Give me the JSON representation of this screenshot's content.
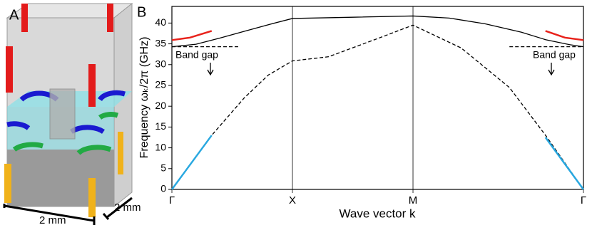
{
  "panel_a": {
    "label": "A",
    "width_label": "2 mm",
    "depth_label": "2 mm"
  },
  "chart_data": {
    "type": "line",
    "panel_label": "B",
    "x_label": "Wave vector k",
    "y_label": "Frequency ωₖ/2π (GHz)",
    "xlim": [
      0,
      3.414
    ],
    "ylim": [
      0,
      44
    ],
    "xticks": [
      {
        "value": 0,
        "label": "Γ"
      },
      {
        "value": 1,
        "label": "X"
      },
      {
        "value": 2,
        "label": "M"
      },
      {
        "value": 3.414,
        "label": "Γ"
      }
    ],
    "yticks": [
      0,
      5,
      10,
      15,
      20,
      25,
      30,
      35,
      40
    ],
    "annotations": [
      "Band gap",
      "Band gap"
    ],
    "series": [
      {
        "color": "#000000",
        "dash": false,
        "x": [
          0,
          0.2,
          0.4,
          0.6,
          0.8,
          1.0,
          1.5,
          2.0,
          2.3,
          2.6,
          2.9,
          3.1,
          3.3,
          3.414
        ],
        "values": [
          34.3,
          34.9,
          36.4,
          38.0,
          39.6,
          41.1,
          41.4,
          41.7,
          41.2,
          39.8,
          37.8,
          36.0,
          34.8,
          34.3
        ]
      },
      {
        "color": "#000000",
        "dash": true,
        "x": [
          0,
          0.33,
          0.6,
          0.8,
          1.0,
          1.3,
          1.7,
          2.0,
          2.4,
          2.8,
          3.1,
          3.414
        ],
        "values": [
          0,
          13,
          22,
          27.5,
          30.9,
          31.9,
          36.2,
          39.5,
          34,
          24.5,
          13,
          0
        ]
      },
      {
        "color": "#e8221b",
        "dash": false,
        "x": [
          0,
          0.15,
          0.33
        ],
        "values": [
          35.9,
          36.5,
          38.1
        ]
      },
      {
        "color": "#e8221b",
        "dash": false,
        "x": [
          3.099,
          3.26,
          3.414
        ],
        "values": [
          38.1,
          36.5,
          35.9
        ]
      },
      {
        "color": "#000000",
        "dash": true,
        "x": [
          0,
          0.55
        ],
        "values": [
          34.3,
          34.3
        ]
      },
      {
        "color": "#000000",
        "dash": true,
        "x": [
          2.8,
          3.414
        ],
        "values": [
          34.3,
          34.3
        ]
      },
      {
        "color": "#29a8e0",
        "dash": false,
        "x": [
          0,
          0.33
        ],
        "values": [
          0,
          13
        ]
      },
      {
        "color": "#29a8e0",
        "dash": false,
        "x": [
          3.099,
          3.414
        ],
        "values": [
          12.5,
          0
        ]
      }
    ]
  }
}
